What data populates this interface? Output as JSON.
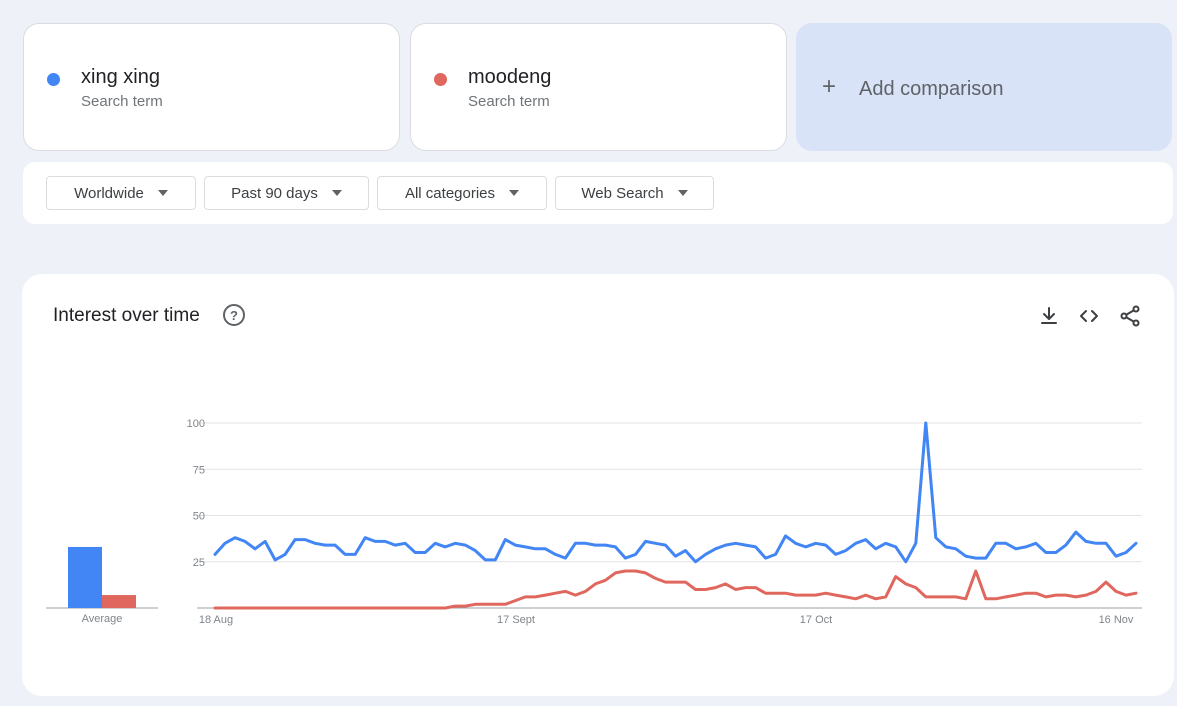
{
  "terms": [
    {
      "name": "xing xing",
      "subtitle": "Search term",
      "color": "#4285f4"
    },
    {
      "name": "moodeng",
      "subtitle": "Search term",
      "color": "#e0675e"
    }
  ],
  "add_comparison": {
    "plus": "+",
    "label": "Add comparison"
  },
  "filters": {
    "region": "Worldwide",
    "time": "Past 90 days",
    "category": "All categories",
    "property": "Web Search"
  },
  "panel": {
    "title": "Interest over time",
    "help_glyph": "?",
    "icons": [
      "download-icon",
      "embed-code-icon",
      "share-icon"
    ]
  },
  "chart_data": {
    "type": "line",
    "x_tick_labels": [
      "18 Aug",
      "17 Sept",
      "17 Oct",
      "16 Nov"
    ],
    "y_ticks": [
      25,
      50,
      75,
      100
    ],
    "ylim": [
      0,
      100
    ],
    "grid": true,
    "average": {
      "label": "Average",
      "values": [
        33,
        7
      ]
    },
    "series": [
      {
        "name": "xing xing",
        "color": "#4285f4",
        "values": [
          29,
          35,
          38,
          36,
          32,
          36,
          26,
          29,
          37,
          37,
          35,
          34,
          34,
          29,
          29,
          38,
          36,
          36,
          34,
          35,
          30,
          30,
          35,
          33,
          35,
          34,
          31,
          26,
          26,
          37,
          34,
          33,
          32,
          32,
          29,
          27,
          35,
          35,
          34,
          34,
          33,
          27,
          29,
          36,
          35,
          34,
          28,
          31,
          25,
          29,
          32,
          34,
          35,
          34,
          33,
          27,
          29,
          39,
          35,
          33,
          35,
          34,
          29,
          31,
          35,
          37,
          32,
          35,
          33,
          25,
          35,
          100,
          38,
          33,
          32,
          28,
          27,
          27,
          35,
          35,
          32,
          33,
          35,
          30,
          30,
          34,
          41,
          36,
          35,
          35,
          28,
          30,
          35
        ],
        "color_hex": "#4285f4"
      },
      {
        "name": "moodeng",
        "color": "#e0675e",
        "values": [
          0,
          0,
          0,
          0,
          0,
          0,
          0,
          0,
          0,
          0,
          0,
          0,
          0,
          0,
          0,
          0,
          0,
          0,
          0,
          0,
          0,
          0,
          0,
          0,
          1,
          1,
          2,
          2,
          2,
          2,
          4,
          6,
          6,
          7,
          8,
          9,
          7,
          9,
          13,
          15,
          19,
          20,
          20,
          19,
          16,
          14,
          14,
          14,
          10,
          10,
          11,
          13,
          10,
          11,
          11,
          8,
          8,
          8,
          7,
          7,
          7,
          8,
          7,
          6,
          5,
          7,
          5,
          6,
          17,
          13,
          11,
          6,
          6,
          6,
          6,
          5,
          20,
          5,
          5,
          6,
          7,
          8,
          8,
          6,
          7,
          7,
          6,
          7,
          9,
          14,
          9,
          7,
          8
        ]
      }
    ]
  }
}
